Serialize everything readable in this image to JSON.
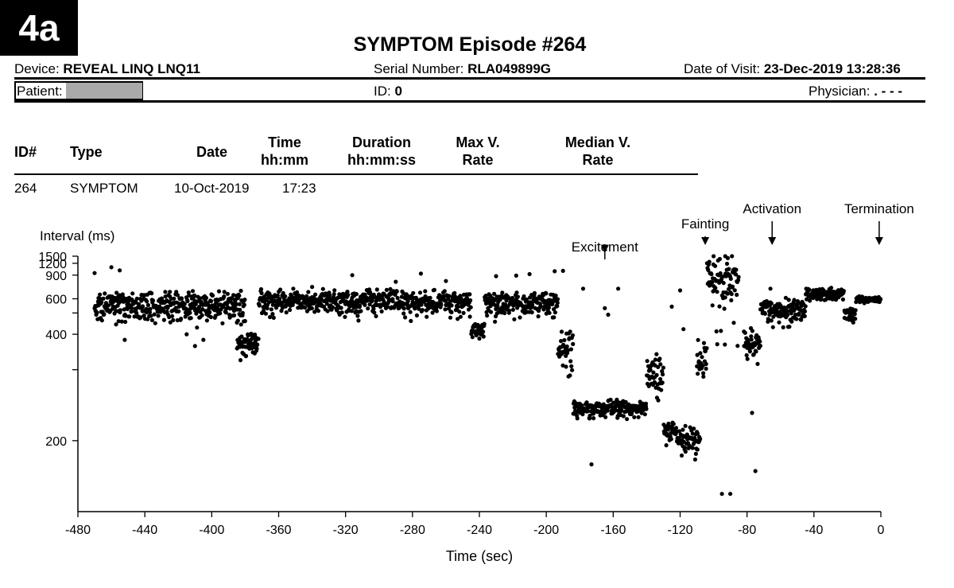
{
  "badge": "4a",
  "title": "SYMPTOM Episode #264",
  "header": {
    "device_label": "Device:",
    "device_value": "REVEAL LINQ LNQ11",
    "serial_label": "Serial Number:",
    "serial_value": "RLA049899G",
    "visit_label": "Date of Visit:",
    "visit_value": "23-Dec-2019 13:28:36",
    "patient_label": "Patient:",
    "id_label": "ID:",
    "id_value": "0",
    "physician_label": "Physician:",
    "physician_value": ".   - - -"
  },
  "episode_table": {
    "columns": [
      {
        "line1": "ID#",
        "line2": ""
      },
      {
        "line1": "Type",
        "line2": ""
      },
      {
        "line1": "Date",
        "line2": ""
      },
      {
        "line1": "Time",
        "line2": "hh:mm"
      },
      {
        "line1": "Duration",
        "line2": "hh:mm:ss"
      },
      {
        "line1": "Max V.",
        "line2": "Rate"
      },
      {
        "line1": "Median V.",
        "line2": "Rate"
      }
    ],
    "row": {
      "id": "264",
      "type": "SYMPTOM",
      "date": "10-Oct-2019",
      "time": "17:23",
      "duration": "",
      "max_rate": "",
      "median_rate": ""
    }
  },
  "chart_data": {
    "type": "scatter",
    "title": "",
    "xlabel": "Time (sec)",
    "ylabel": "Interval (ms)",
    "xlim": [
      -480,
      0
    ],
    "ylim": [
      150,
      1500
    ],
    "yscale": "reciprocal (rate-based interval axis)",
    "x_ticks": [
      -480,
      -440,
      -400,
      -360,
      -320,
      -280,
      -240,
      -200,
      -160,
      -120,
      -80,
      -40,
      0
    ],
    "y_ticks": [
      200,
      400,
      600,
      900,
      1200,
      1500
    ],
    "y_unlabeled_ticks": [
      300,
      500
    ],
    "grid": false,
    "point_color": "#000000",
    "annotations": [
      {
        "label": "Excitement",
        "x": -165,
        "arrow_to": 1180
      },
      {
        "label": "Fainting",
        "x": -105,
        "arrow_to": 1500
      },
      {
        "label": "Activation",
        "x": -65,
        "arrow_to": 1500
      },
      {
        "label": "Termination",
        "x": -1,
        "arrow_to": 1500
      }
    ],
    "segments": [
      {
        "x0": -470,
        "x1": -380,
        "ymin": 400,
        "ymax": 700,
        "outliers": [
          [
            -470,
            940
          ],
          [
            -460,
            1080
          ],
          [
            -455,
            1000
          ],
          [
            -452,
            380
          ],
          [
            -415,
            400
          ],
          [
            -410,
            360
          ],
          [
            -405,
            380
          ]
        ]
      },
      {
        "x0": -385,
        "x1": -372,
        "ymin": 320,
        "ymax": 420
      },
      {
        "x0": -372,
        "x1": -245,
        "ymin": 440,
        "ymax": 720,
        "outliers": [
          [
            -316,
            900
          ],
          [
            -290,
            790
          ],
          [
            -275,
            930
          ],
          [
            -340,
            720
          ],
          [
            -260,
            800
          ]
        ]
      },
      {
        "x0": -245,
        "x1": -237,
        "ymin": 370,
        "ymax": 460
      },
      {
        "x0": -237,
        "x1": -193,
        "ymin": 440,
        "ymax": 700,
        "outliers": [
          [
            -230,
            880
          ],
          [
            -218,
            890
          ],
          [
            -210,
            920
          ],
          [
            -195,
            980
          ],
          [
            -190,
            990
          ]
        ]
      },
      {
        "x0": -193,
        "x1": -184,
        "ymin": 260,
        "ymax": 440
      },
      {
        "x0": -184,
        "x1": -140,
        "ymin": 220,
        "ymax": 250,
        "outliers": [
          [
            -178,
            700
          ],
          [
            -173,
            180
          ],
          [
            -163,
            490
          ],
          [
            -157,
            700
          ],
          [
            -165,
            530
          ]
        ]
      },
      {
        "x0": -140,
        "x1": -130,
        "ymin": 230,
        "ymax": 350
      },
      {
        "x0": -130,
        "x1": -122,
        "ymin": 190,
        "ymax": 230,
        "outliers": [
          [
            -125,
            540
          ],
          [
            -120,
            680
          ],
          [
            -118,
            420
          ]
        ]
      },
      {
        "x0": -122,
        "x1": -108,
        "ymin": 180,
        "ymax": 220
      },
      {
        "x0": -110,
        "x1": -104,
        "ymin": 250,
        "ymax": 400
      },
      {
        "x0": -104,
        "x1": -85,
        "ymin": 160,
        "ymax": 1500,
        "outliers": [
          [
            -100,
            1500
          ],
          [
            -93,
            1500
          ],
          [
            -89,
            1500
          ],
          [
            -95,
            160
          ],
          [
            -90,
            160
          ]
        ]
      },
      {
        "x0": -82,
        "x1": -72,
        "ymin": 300,
        "ymax": 440
      },
      {
        "x0": -72,
        "x1": -45,
        "ymin": 400,
        "ymax": 620,
        "outliers": [
          [
            -77,
            230
          ],
          [
            -75,
            175
          ],
          [
            -66,
            700
          ]
        ]
      },
      {
        "x0": -45,
        "x1": -22,
        "ymin": 560,
        "ymax": 740
      },
      {
        "x0": -22,
        "x1": -15,
        "ymin": 430,
        "ymax": 560
      },
      {
        "x0": -15,
        "x1": 0,
        "ymin": 560,
        "ymax": 630
      }
    ]
  }
}
